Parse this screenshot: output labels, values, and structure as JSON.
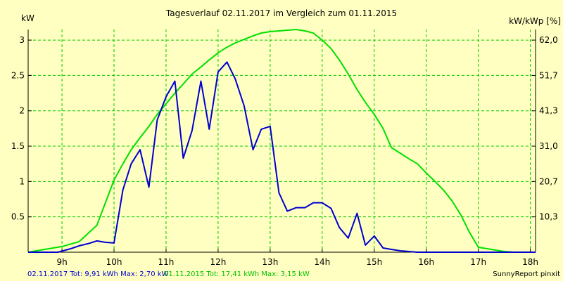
{
  "chart_data": {
    "type": "line",
    "title": "Tagesverlauf 02.11.2017 im Vergleich zum 01.11.2015",
    "ylabel": "kW",
    "y2label": "kW/kWp [%]",
    "xlim": [
      8.35,
      18.1
    ],
    "ylim": [
      0,
      3.15
    ],
    "x_ticks": [
      9,
      10,
      11,
      12,
      13,
      14,
      15,
      16,
      17,
      18
    ],
    "x_tick_labels": [
      "9h",
      "10h",
      "11h",
      "12h",
      "13h",
      "14h",
      "15h",
      "16h",
      "17h",
      "18h"
    ],
    "y_ticks": [
      0.5,
      1,
      1.5,
      2,
      2.5,
      3
    ],
    "y_tick_labels": [
      "0.5",
      "1",
      "1.5",
      "2",
      "2.5",
      "3"
    ],
    "y2_ticks": [
      0.5,
      1,
      1.5,
      2,
      2.5,
      3
    ],
    "y2_tick_labels": [
      "10,3",
      "20,7",
      "31,0",
      "41,3",
      "51,7",
      "62,0"
    ],
    "grid": true,
    "background_color": "#ffffc1",
    "grid_color": "#00cc00",
    "series": [
      {
        "name": "02.11.2017",
        "summary": "02.11.2017 Tot: 9,91 kWh Max: 2,70 kW",
        "color": "#0000d0",
        "x": [
          8.35,
          8.92,
          9.17,
          9.33,
          9.5,
          9.67,
          9.83,
          10.0,
          10.17,
          10.33,
          10.5,
          10.67,
          10.83,
          11.0,
          11.17,
          11.33,
          11.5,
          11.67,
          11.83,
          12.0,
          12.17,
          12.33,
          12.5,
          12.67,
          12.83,
          13.0,
          13.17,
          13.33,
          13.5,
          13.67,
          13.83,
          14.0,
          14.17,
          14.33,
          14.5,
          14.67,
          14.83,
          15.0,
          15.17,
          15.33,
          15.5,
          15.67,
          15.83,
          16.0,
          16.17,
          16.33,
          16.5,
          16.67,
          16.83,
          17.0,
          17.17,
          17.33,
          17.5,
          17.67,
          17.83,
          18.0,
          18.1
        ],
        "y": [
          0.0,
          0.0,
          0.05,
          0.09,
          0.12,
          0.16,
          0.14,
          0.13,
          0.88,
          1.25,
          1.45,
          0.92,
          1.87,
          2.2,
          2.42,
          1.33,
          1.72,
          2.42,
          1.74,
          2.55,
          2.69,
          2.45,
          2.07,
          1.45,
          1.74,
          1.78,
          0.84,
          0.58,
          0.63,
          0.63,
          0.7,
          0.7,
          0.62,
          0.35,
          0.2,
          0.55,
          0.1,
          0.23,
          0.06,
          0.04,
          0.02,
          0.01,
          0.0,
          0.0,
          0.0,
          0.0,
          0.0,
          0.0,
          0.0,
          0.0,
          0.0,
          0.0,
          0.0,
          0.0,
          0.0,
          0.0,
          0.0
        ]
      },
      {
        "name": "01.11.2015",
        "summary": "01.11.2015 Tot: 17,41 kWh Max: 3,15 kW",
        "color": "#00e000",
        "x": [
          8.35,
          9.0,
          9.33,
          9.67,
          10.0,
          10.17,
          10.33,
          10.5,
          10.67,
          10.83,
          11.0,
          11.17,
          11.33,
          11.5,
          11.67,
          11.83,
          12.0,
          12.17,
          12.33,
          12.5,
          12.67,
          12.83,
          13.0,
          13.17,
          13.33,
          13.5,
          13.67,
          13.83,
          14.0,
          14.17,
          14.33,
          14.5,
          14.67,
          14.83,
          15.0,
          15.17,
          15.33,
          15.5,
          15.67,
          15.83,
          16.0,
          16.17,
          16.33,
          16.5,
          16.67,
          16.83,
          17.0,
          17.17,
          17.33,
          17.5,
          17.67,
          17.83,
          18.0,
          18.1
        ],
        "y": [
          0.0,
          0.08,
          0.15,
          0.38,
          1.02,
          1.25,
          1.45,
          1.62,
          1.78,
          1.95,
          2.1,
          2.25,
          2.38,
          2.52,
          2.62,
          2.72,
          2.82,
          2.9,
          2.96,
          3.01,
          3.06,
          3.1,
          3.12,
          3.13,
          3.14,
          3.15,
          3.13,
          3.1,
          3.0,
          2.88,
          2.72,
          2.52,
          2.3,
          2.12,
          1.95,
          1.75,
          1.48,
          1.4,
          1.32,
          1.25,
          1.12,
          1.0,
          0.88,
          0.72,
          0.52,
          0.28,
          0.07,
          0.05,
          0.03,
          0.01,
          0.0,
          0.0,
          0.0,
          0.0
        ]
      }
    ],
    "footer_brand": "SunnyReport pinxit"
  }
}
